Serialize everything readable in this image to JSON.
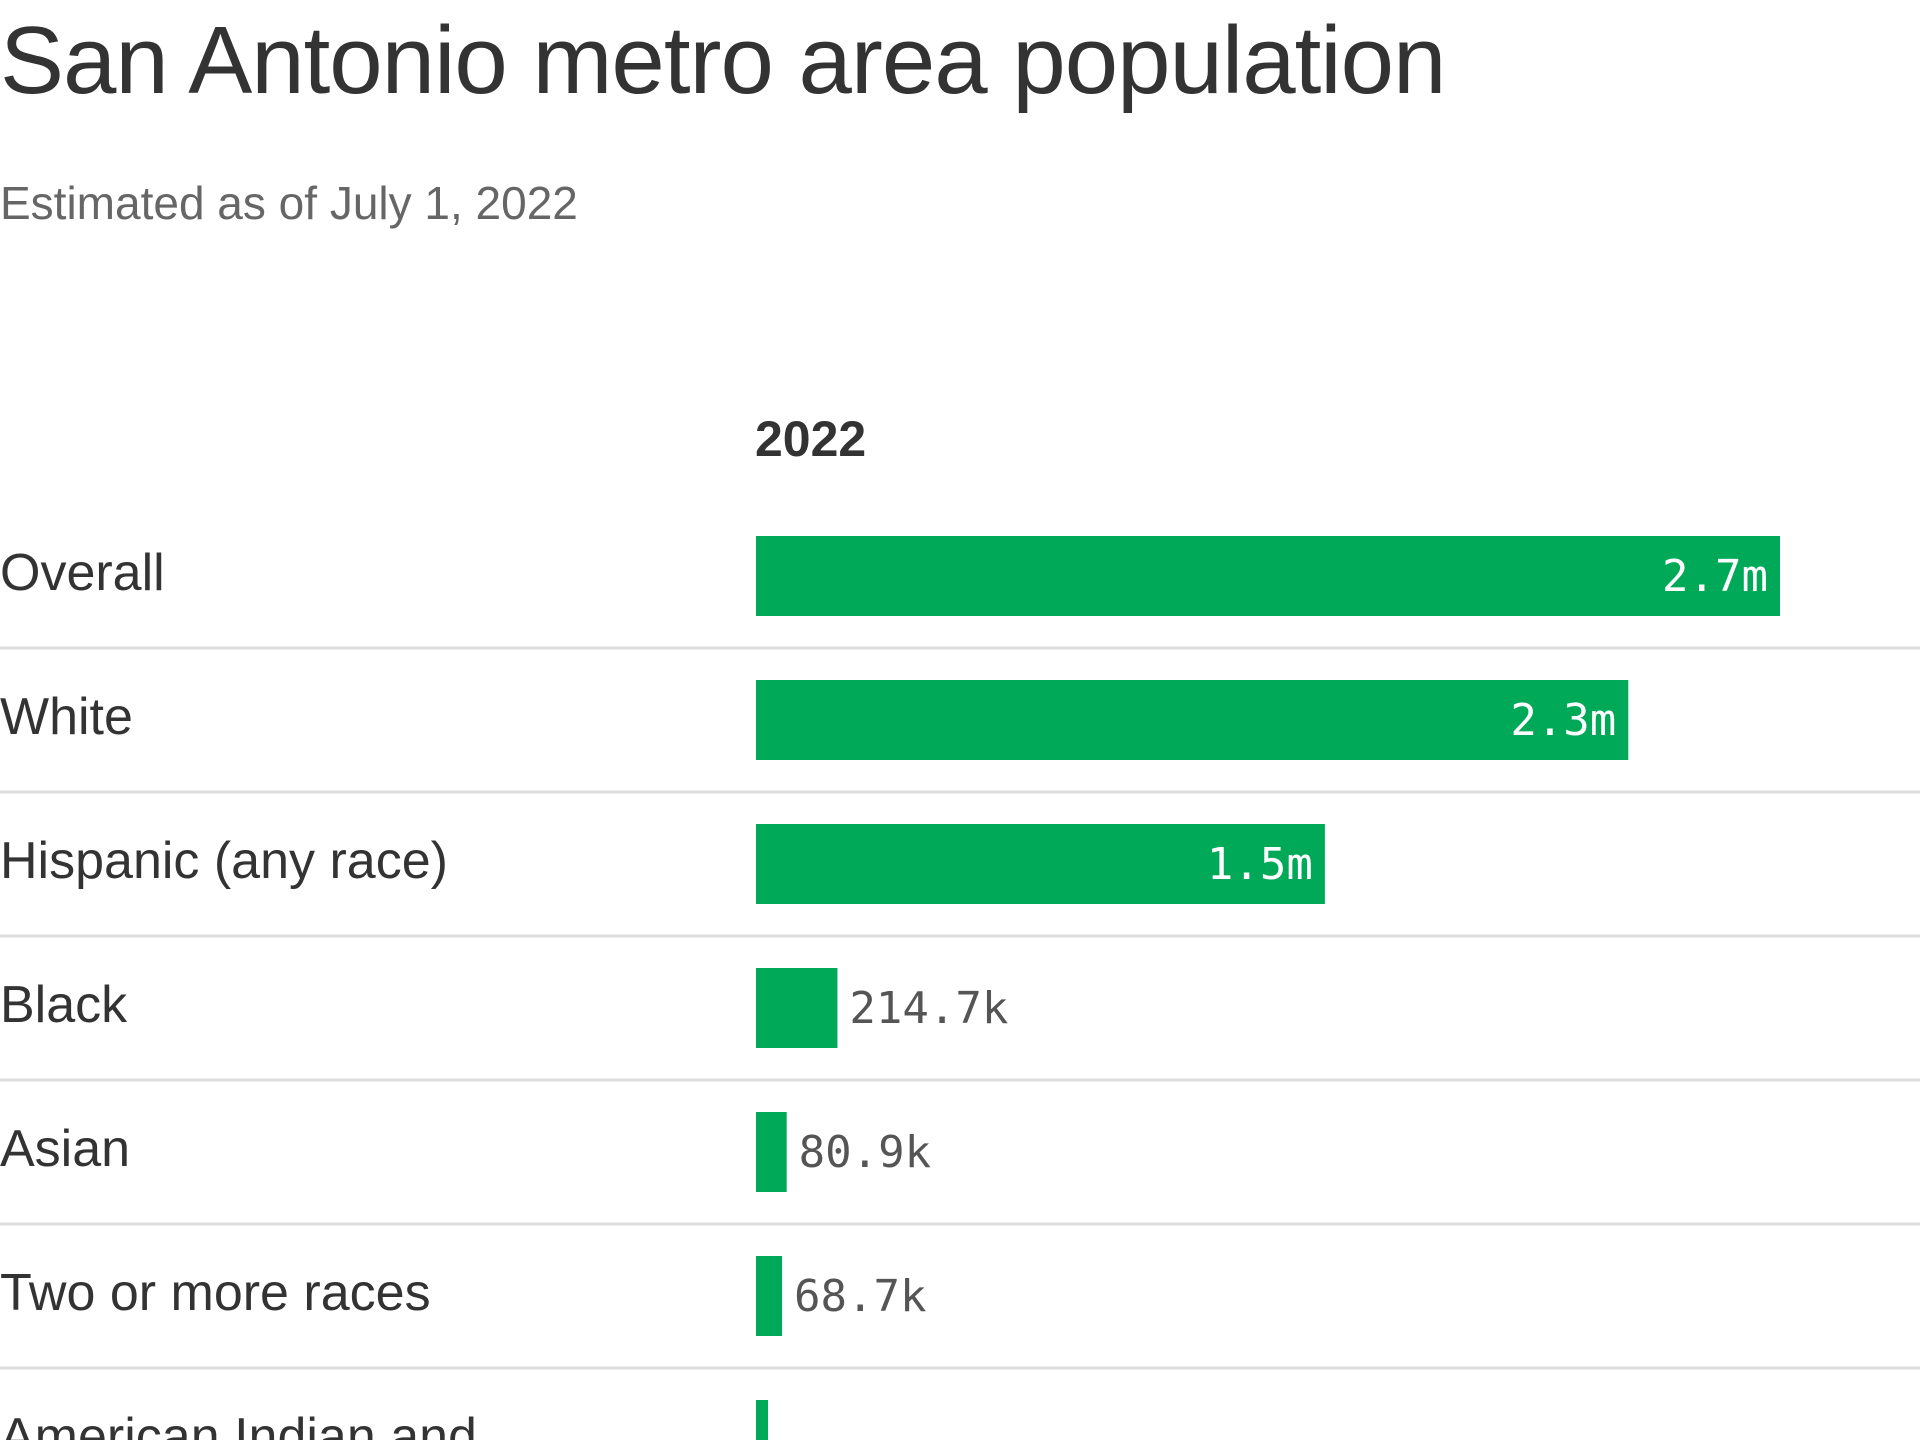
{
  "chart_data": {
    "type": "bar",
    "orientation": "horizontal",
    "title": "San Antonio metro area population",
    "subtitle": "Estimated as of July 1, 2022",
    "column_header": "2022",
    "categories": [
      "Overall",
      "White",
      "Hispanic (any race)",
      "Black",
      "Asian",
      "Two or more races",
      "American Indian and"
    ],
    "values": [
      2700000,
      2300000,
      1500000,
      214700,
      80900,
      68700,
      null
    ],
    "value_labels": [
      "2.7m",
      "2.3m",
      "1.5m",
      "214.7k",
      "80.9k",
      "68.7k",
      ""
    ],
    "xlim": [
      0,
      2700000
    ],
    "grid": false,
    "legend": "none",
    "colors": {
      "bar": "#00a958",
      "label_inside": "#ffffff",
      "label_outside": "#555555",
      "row_divider": "#dddddd",
      "category_text": "#333333"
    }
  }
}
